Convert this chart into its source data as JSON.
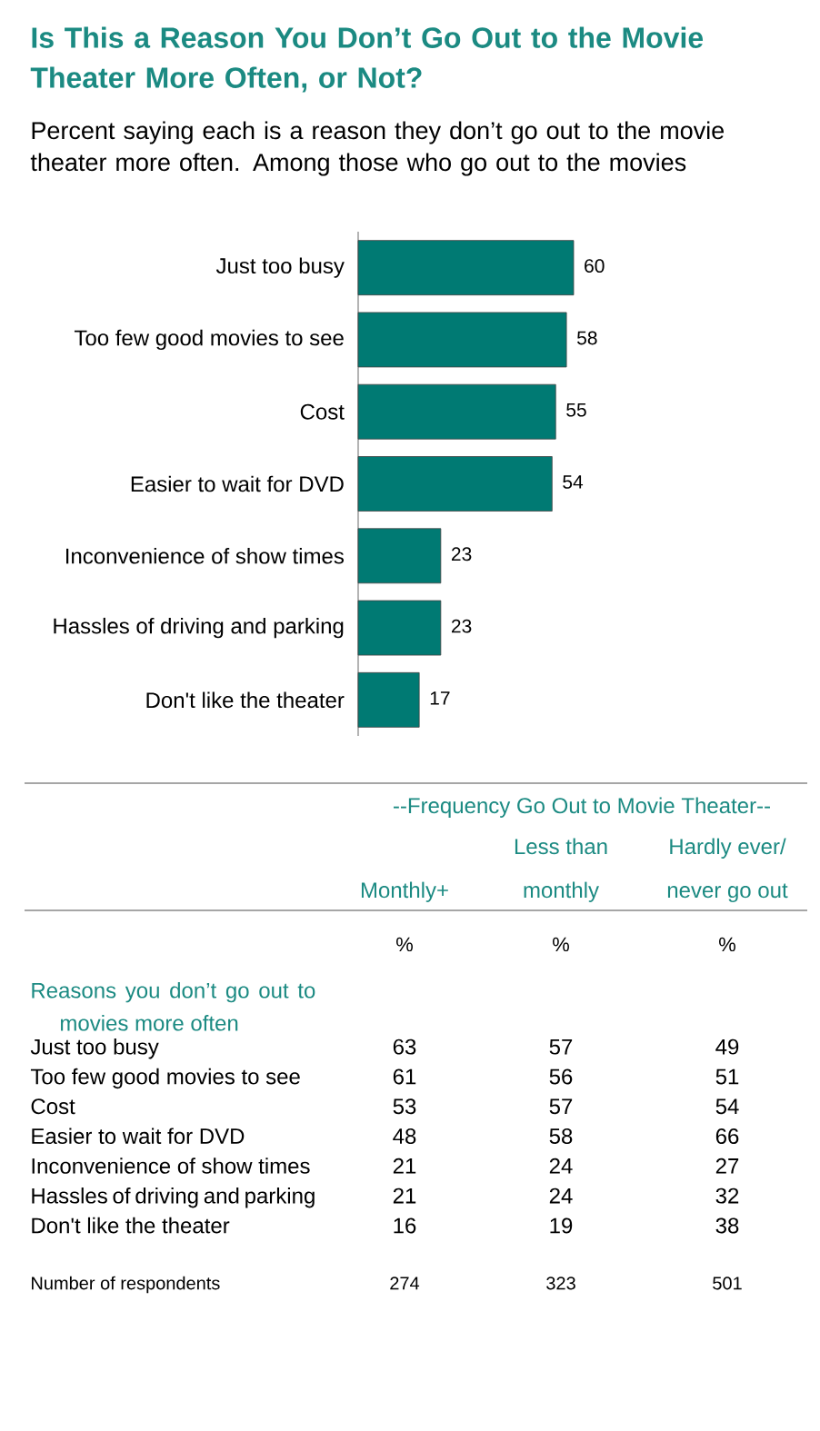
{
  "chart_data": [
    {
      "type": "bar",
      "title": "Is This a Reason You Don’t Go Out to the Movie Theater More Often, or Not?",
      "subtitle": "Percent saying each is a reason they don’t go out to the movie theater more often. Among those who go out to the movies",
      "categories": [
        "Just too busy",
        "Too few good movies to see",
        "Cost",
        "Easier to wait for DVD",
        "Inconvenience of show times",
        "Hassles of driving and parking",
        "Don't like the theater"
      ],
      "values": [
        60,
        58,
        55,
        54,
        23,
        23,
        17
      ],
      "color": "#007a73",
      "orientation": "horizontal",
      "data_labels": true,
      "tick_labels": "y"
    },
    {
      "type": "other",
      "data_labels": true,
      "title": "--Frequency Go Out to Movie Theater--",
      "ylabel": "Reasons you don’t go out to movies more often",
      "annotations": [
        "%",
        "%",
        "%"
      ],
      "categories": [
        "Just too busy",
        "Too few good movies to see",
        "Cost",
        "Easier to wait for DVD",
        "Inconvenience of show times",
        "Hassles of driving and parking",
        "Don't like the theater",
        "Number of respondents"
      ],
      "series": [
        {
          "name": "Monthly+",
          "values": [
            63,
            61,
            53,
            48,
            21,
            21,
            16,
            274
          ]
        },
        {
          "name": "Less than monthly",
          "values": [
            57,
            56,
            57,
            58,
            24,
            24,
            19,
            323
          ]
        },
        {
          "name": "Hardly ever/ never go out",
          "values": [
            49,
            51,
            54,
            66,
            27,
            32,
            38,
            501
          ]
        }
      ]
    }
  ]
}
